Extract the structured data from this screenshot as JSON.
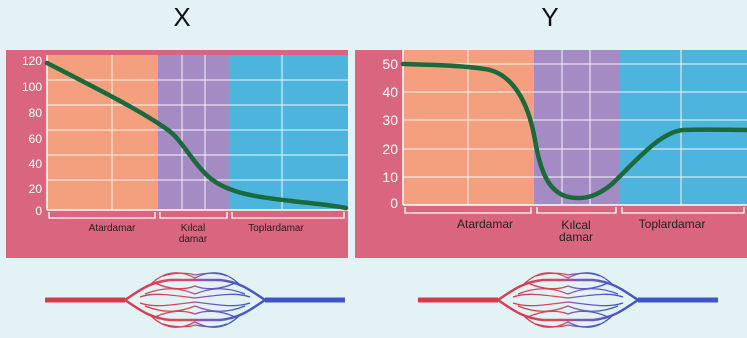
{
  "panels": [
    {
      "title": "X",
      "y_ticks": [
        "120",
        "100",
        "80",
        "60",
        "40",
        "20",
        "0"
      ],
      "segments": [
        {
          "label": "Atardamar",
          "color": "#f4a07f"
        },
        {
          "label_line1": "Kılcal",
          "label_line2": "damar",
          "color": "#a58bc4"
        },
        {
          "label": "Toplardamar",
          "color": "#4db4dd"
        }
      ],
      "curve_color": "#1a6a3c"
    },
    {
      "title": "Y",
      "y_ticks": [
        "50",
        "40",
        "30",
        "20",
        "10",
        "0"
      ],
      "segments": [
        {
          "label": "Atardamar",
          "color": "#f4a07f"
        },
        {
          "label_line1": "Kılcal",
          "label_line2": "damar",
          "color": "#a58bc4"
        },
        {
          "label": "Toplardamar",
          "color": "#4db4dd"
        }
      ],
      "curve_color": "#1a6a3c"
    }
  ],
  "colors": {
    "frame": "#d9667e",
    "background": "#e3f2f4",
    "artery": "#d83a4d",
    "vein": "#3c55c8"
  }
}
